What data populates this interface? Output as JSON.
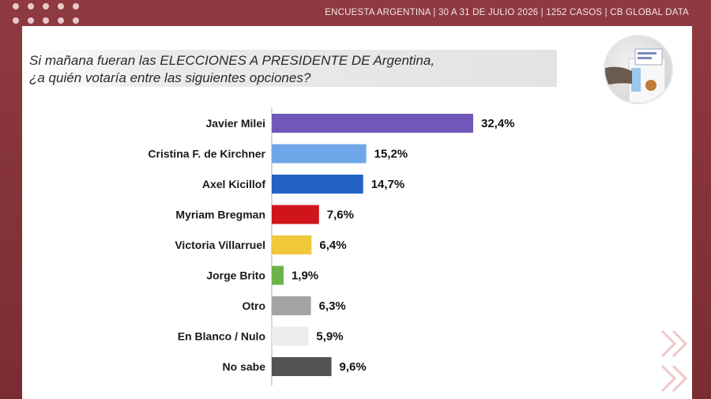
{
  "header": {
    "source_line": "ENCUESTA ARGENTINA | 30 A 31 DE JULIO 2026 | 1252 CASOS | CB GLOBAL DATA"
  },
  "question": {
    "line1": "Si mañana fueran las ELECCIONES A PRESIDENTE DE Argentina,",
    "line2": "¿a quién votaría entre las siguientes opciones?"
  },
  "colors": {
    "frame": "#8e3a40",
    "card": "#ffffff"
  },
  "chart_data": {
    "type": "bar",
    "orientation": "horizontal",
    "categories": [
      "Javier Milei",
      "Cristina F. de Kirchner",
      "Axel Kicillof",
      "Myriam Bregman",
      "Victoria Villarruel",
      "Jorge Brito",
      "Otro",
      "En Blanco / Nulo",
      "No sabe"
    ],
    "values": [
      32.4,
      15.2,
      14.7,
      7.6,
      6.4,
      1.9,
      6.3,
      5.9,
      9.6
    ],
    "value_labels": [
      "32,4%",
      "15,2%",
      "14,7%",
      "7,6%",
      "6,4%",
      "1,9%",
      "6,3%",
      "5,9%",
      "9,6%"
    ],
    "colors": [
      "#7158b8",
      "#6fa6e8",
      "#2562c8",
      "#d0141b",
      "#f0c93a",
      "#6bb34a",
      "#a3a3a3",
      "#ececec",
      "#545454"
    ],
    "xlim": [
      0,
      35
    ],
    "grid": false,
    "legend": false
  }
}
